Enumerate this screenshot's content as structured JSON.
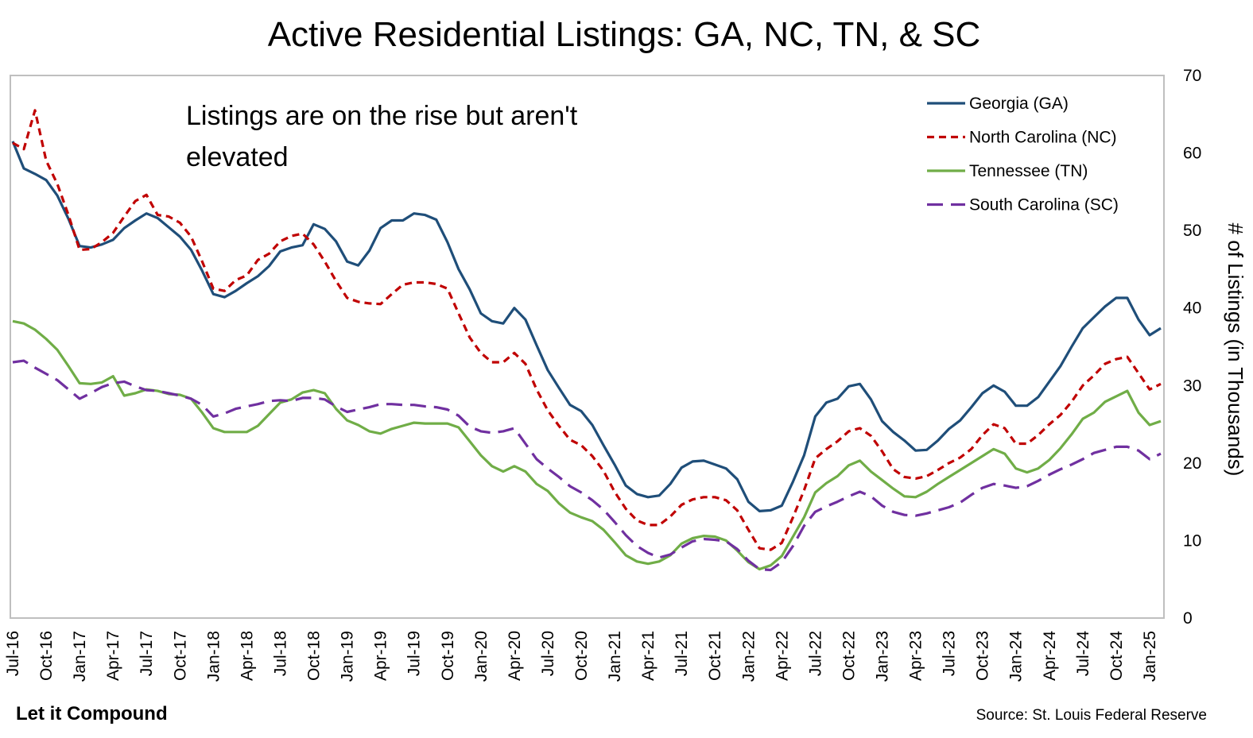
{
  "chart_data": {
    "type": "line",
    "title": "Active Residential Listings: GA, NC, TN, & SC",
    "annotation": [
      "Listings are on the rise but aren't",
      "elevated"
    ],
    "ylabel": "# of Listings (in Thousands)",
    "ylim": [
      0,
      70
    ],
    "yticks": [
      0,
      10,
      20,
      30,
      40,
      50,
      60,
      70
    ],
    "y_axis_side": "right",
    "grid": false,
    "legend_position": "top-right",
    "x_start": "2016-07",
    "x_tick_labels": [
      "Jul-16",
      "Oct-16",
      "Jan-17",
      "Apr-17",
      "Jul-17",
      "Oct-17",
      "Jan-18",
      "Apr-18",
      "Jul-18",
      "Oct-18",
      "Jan-19",
      "Apr-19",
      "Jul-19",
      "Oct-19",
      "Jan-20",
      "Apr-20",
      "Jul-20",
      "Oct-20",
      "Jan-21",
      "Apr-21",
      "Jul-21",
      "Oct-21",
      "Jan-22",
      "Apr-22",
      "Jul-22",
      "Oct-22",
      "Jan-23",
      "Apr-23",
      "Jul-23",
      "Oct-23",
      "Jan-24",
      "Apr-24",
      "Jul-24",
      "Oct-24",
      "Jan-25"
    ],
    "series": [
      {
        "name": "Georgia (GA)",
        "color": "#1f4e79",
        "dash": "solid",
        "values": [
          61.5,
          58.0,
          57.3,
          56.5,
          54.5,
          51.5,
          48.0,
          47.8,
          48.2,
          48.8,
          50.3,
          51.3,
          52.2,
          51.6,
          50.4,
          49.2,
          47.5,
          44.8,
          41.8,
          41.4,
          42.2,
          43.2,
          44.1,
          45.4,
          47.3,
          47.8,
          48.1,
          50.8,
          50.2,
          48.6,
          46.0,
          45.5,
          47.4,
          50.3,
          51.3,
          51.3,
          52.2,
          52.0,
          51.4,
          48.5,
          45.0,
          42.4,
          39.3,
          38.3,
          38.0,
          40.0,
          38.5,
          35.2,
          32.0,
          29.7,
          27.5,
          26.7,
          24.9,
          22.3,
          19.8,
          17.1,
          16.0,
          15.6,
          15.8,
          17.3,
          19.4,
          20.2,
          20.3,
          19.8,
          19.3,
          17.9,
          15.0,
          13.8,
          13.9,
          14.5,
          17.6,
          21.0,
          26.0,
          27.8,
          28.3,
          29.9,
          30.2,
          28.2,
          25.4,
          24.0,
          22.9,
          21.6,
          21.7,
          22.9,
          24.4,
          25.5,
          27.2,
          29.0,
          30.0,
          29.2,
          27.4,
          27.4,
          28.5,
          30.5,
          32.5,
          35.0,
          37.4,
          38.8,
          40.2,
          41.3,
          41.3,
          38.5,
          36.5,
          37.4
        ]
      },
      {
        "name": "North Carolina (NC)",
        "color": "#c00000",
        "dash": "dashed",
        "values": [
          61.3,
          60.5,
          65.5,
          59.0,
          56.0,
          52.0,
          47.5,
          47.6,
          48.5,
          49.7,
          51.8,
          53.8,
          54.6,
          52.0,
          51.8,
          51.0,
          49.2,
          46.0,
          42.5,
          42.2,
          43.6,
          44.2,
          46.2,
          47.0,
          48.6,
          49.3,
          49.6,
          48.2,
          46.0,
          43.5,
          41.3,
          40.8,
          40.6,
          40.5,
          41.8,
          43.0,
          43.3,
          43.3,
          43.1,
          42.5,
          39.3,
          36.2,
          34.2,
          33.0,
          33.0,
          34.2,
          32.8,
          29.5,
          26.8,
          24.8,
          23.0,
          22.3,
          20.9,
          19.0,
          16.3,
          14.1,
          12.6,
          12.0,
          12.0,
          13.1,
          14.6,
          15.3,
          15.6,
          15.6,
          15.2,
          13.9,
          11.4,
          9.0,
          8.8,
          9.7,
          13.0,
          16.5,
          20.6,
          21.8,
          22.8,
          24.1,
          24.5,
          23.5,
          21.5,
          19.2,
          18.2,
          18.0,
          18.3,
          19.1,
          20.0,
          20.7,
          21.8,
          23.6,
          25.0,
          24.5,
          22.5,
          22.5,
          23.6,
          25.0,
          26.2,
          27.9,
          30.0,
          31.3,
          32.8,
          33.4,
          33.7,
          31.6,
          29.5,
          30.2
        ]
      },
      {
        "name": "Tennessee (TN)",
        "color": "#70ad47",
        "dash": "solid",
        "values": [
          38.3,
          38.0,
          37.2,
          36.0,
          34.6,
          32.5,
          30.3,
          30.2,
          30.4,
          31.2,
          28.7,
          29.0,
          29.5,
          29.3,
          28.9,
          28.8,
          28.3,
          26.5,
          24.5,
          24.0,
          24.0,
          24.0,
          24.8,
          26.3,
          27.8,
          28.2,
          29.1,
          29.4,
          29.0,
          27.0,
          25.5,
          24.9,
          24.1,
          23.8,
          24.4,
          24.8,
          25.2,
          25.1,
          25.1,
          25.1,
          24.6,
          22.8,
          21.0,
          19.6,
          18.9,
          19.6,
          18.9,
          17.3,
          16.4,
          14.8,
          13.6,
          13.0,
          12.5,
          11.4,
          9.8,
          8.1,
          7.3,
          7.0,
          7.3,
          8.1,
          9.6,
          10.3,
          10.6,
          10.5,
          10.0,
          8.7,
          7.2,
          6.3,
          6.8,
          8.0,
          10.5,
          13.0,
          16.2,
          17.4,
          18.3,
          19.7,
          20.3,
          18.9,
          17.8,
          16.7,
          15.7,
          15.6,
          16.3,
          17.3,
          18.2,
          19.1,
          20.0,
          20.9,
          21.8,
          21.2,
          19.3,
          18.8,
          19.3,
          20.4,
          21.9,
          23.7,
          25.7,
          26.5,
          27.9,
          28.6,
          29.3,
          26.5,
          24.9,
          25.4
        ]
      },
      {
        "name": "South Carolina (SC)",
        "color": "#7030a0",
        "dash": "longdash",
        "values": [
          33.0,
          33.2,
          32.3,
          31.5,
          30.7,
          29.5,
          28.3,
          29.0,
          29.8,
          30.3,
          30.5,
          29.9,
          29.4,
          29.3,
          29.0,
          28.7,
          28.3,
          27.5,
          26.0,
          26.4,
          27.0,
          27.3,
          27.6,
          28.0,
          28.1,
          28.0,
          28.4,
          28.4,
          28.2,
          27.3,
          26.6,
          26.9,
          27.2,
          27.6,
          27.6,
          27.5,
          27.5,
          27.3,
          27.2,
          26.9,
          26.1,
          24.7,
          24.1,
          23.9,
          24.1,
          24.5,
          22.5,
          20.5,
          19.3,
          18.2,
          17.0,
          16.2,
          15.2,
          14.0,
          12.4,
          10.7,
          9.3,
          8.4,
          7.8,
          8.2,
          9.1,
          9.9,
          10.2,
          10.1,
          9.9,
          8.9,
          7.4,
          6.3,
          6.2,
          7.2,
          9.3,
          11.9,
          13.7,
          14.4,
          15.0,
          15.7,
          16.3,
          15.7,
          14.5,
          13.7,
          13.3,
          13.2,
          13.5,
          13.9,
          14.3,
          14.9,
          15.9,
          16.8,
          17.3,
          17.1,
          16.8,
          17.0,
          17.7,
          18.5,
          19.2,
          19.8,
          20.5,
          21.3,
          21.7,
          22.1,
          22.1,
          21.6,
          20.5,
          21.2
        ]
      }
    ]
  },
  "footer": {
    "brand": "Let it Compound",
    "source": "Source: St. Louis Federal Reserve"
  }
}
